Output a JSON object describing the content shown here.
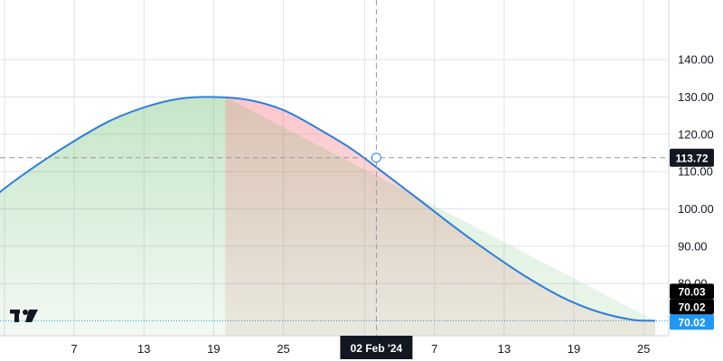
{
  "chart_data": {
    "type": "line",
    "x_unit": "day",
    "y_axis": {
      "ticks": [
        80,
        90,
        100,
        110,
        120,
        130,
        140
      ],
      "labels": [
        "80.00",
        "90.00",
        "100.00",
        "110.00",
        "120.00",
        "130.00",
        "140.00"
      ],
      "range": [
        66,
        156
      ]
    },
    "x_axis": {
      "labels": [
        {
          "text": "7",
          "date": "2024-01-07"
        },
        {
          "text": "13",
          "date": "2024-01-13"
        },
        {
          "text": "19",
          "date": "2024-01-19"
        },
        {
          "text": "25",
          "date": "2024-01-25"
        },
        {
          "text": "7",
          "date": "2024-02-07"
        },
        {
          "text": "13",
          "date": "2024-02-13"
        },
        {
          "text": "19",
          "date": "2024-02-19"
        },
        {
          "text": "25",
          "date": "2024-02-25"
        }
      ],
      "range": [
        "2024-01-01",
        "2024-02-26"
      ]
    },
    "series": [
      {
        "x": [
          "2024-01-01",
          "2024-01-04",
          "2024-01-07",
          "2024-01-10",
          "2024-01-13",
          "2024-01-16",
          "2024-01-19",
          "2024-01-22",
          "2024-01-25",
          "2024-01-28",
          "2024-01-31",
          "2024-02-03",
          "2024-02-06",
          "2024-02-09",
          "2024-02-12",
          "2024-02-15",
          "2024-02-18",
          "2024-02-21",
          "2024-02-24",
          "2024-02-26"
        ],
        "y": [
          105.5,
          112.2,
          118.2,
          123.5,
          127.2,
          129.5,
          130.0,
          129.2,
          126.5,
          121.5,
          115.8,
          108.8,
          101.7,
          94.5,
          87.8,
          81.6,
          76.3,
          72.5,
          70.3,
          70.02
        ],
        "color": "#2f7ed8"
      }
    ],
    "shaded_regions": [
      {
        "from": "2024-01-01",
        "to": "2024-01-20",
        "top": "curve",
        "color": "#4caf50"
      },
      {
        "from": "2024-01-20",
        "to": "2024-02-26",
        "top_line": [
          {
            "x": "2024-01-20",
            "y": 130.0
          },
          {
            "x": "2024-02-26",
            "y": 70.02
          }
        ],
        "color": "#4caf50"
      },
      {
        "from": "2024-01-20",
        "to": "2024-02-26",
        "top": "curve",
        "color": "#f23645"
      }
    ],
    "crosshair": {
      "x": "2024-02-02",
      "y": 113.72,
      "x_label": "02 Feb '24",
      "y_label": "113.72"
    },
    "price_badges": [
      {
        "label": "70.03",
        "color": "#000000"
      },
      {
        "label": "70.02",
        "color": "#000000"
      },
      {
        "label": "70.02",
        "color": "#2196f3"
      }
    ],
    "last_value_line": 70.02,
    "grid": true,
    "colors": {
      "line": "#2f7ed8",
      "grid": "#e0e3eb",
      "axis_text": "#131722",
      "crosshair": "#9598a1"
    },
    "logo_icon": "tradingview-logo-icon"
  }
}
